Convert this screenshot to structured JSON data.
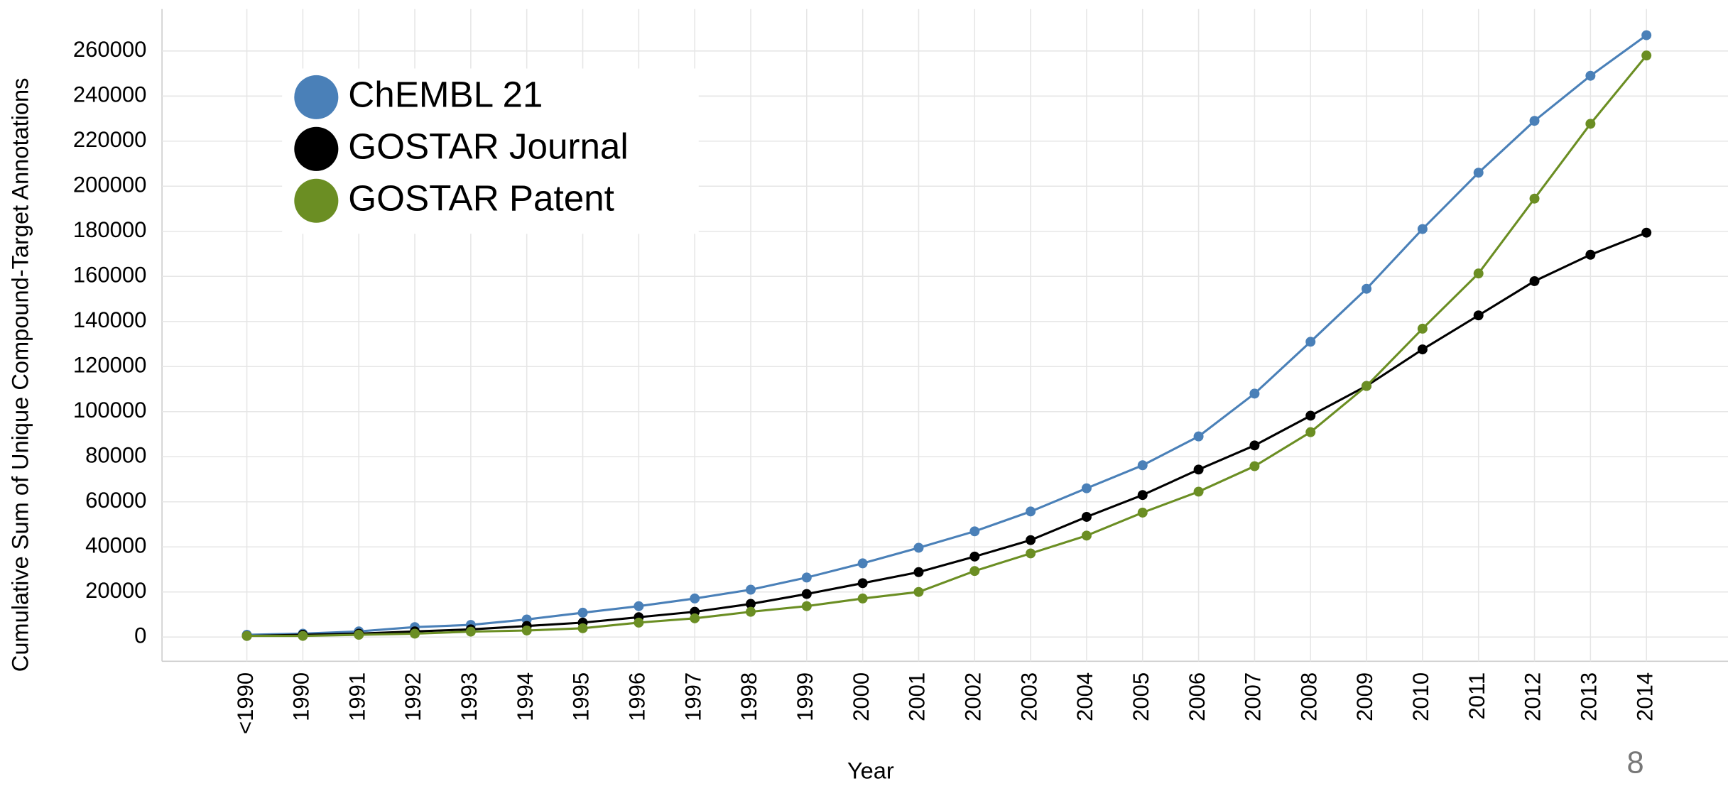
{
  "chart_data": {
    "type": "line",
    "x_label": "Year",
    "y_label": "Cumulative Sum of Unique Compound-Target Annotations",
    "categories": [
      "<1990",
      "1990",
      "1991",
      "1992",
      "1993",
      "1994",
      "1995",
      "1996",
      "1997",
      "1998",
      "1999",
      "2000",
      "2001",
      "2002",
      "2003",
      "2004",
      "2005",
      "2006",
      "2007",
      "2008",
      "2009",
      "2010",
      "2011",
      "2012",
      "2013",
      "2014"
    ],
    "series": [
      {
        "name": "ChEMBL 21",
        "color": "#4a80b8",
        "values": [
          1000,
          1500,
          2500,
          4400,
          5400,
          7800,
          10800,
          13700,
          17100,
          21000,
          26400,
          32700,
          39600,
          46900,
          55700,
          66000,
          76200,
          89000,
          108000,
          131000,
          154500,
          181000,
          206000,
          229000,
          249000,
          267000
        ]
      },
      {
        "name": "GOSTAR Journal",
        "color": "#000000",
        "values": [
          500,
          1000,
          1500,
          2500,
          3400,
          4900,
          6400,
          8800,
          11200,
          14700,
          19100,
          23900,
          28800,
          35700,
          43000,
          53300,
          63000,
          74300,
          85000,
          98200,
          111400,
          127600,
          142700,
          157900,
          169600,
          179400
        ]
      },
      {
        "name": "GOSTAR Patent",
        "color": "#6b8e23",
        "values": [
          500,
          500,
          1000,
          1500,
          2400,
          2900,
          3900,
          6400,
          8300,
          11200,
          13700,
          17100,
          20000,
          29300,
          37100,
          45000,
          55200,
          64500,
          75800,
          90900,
          111400,
          136800,
          161300,
          194500,
          227700,
          258000
        ]
      }
    ],
    "ylim": [
      -10750,
      278600
    ],
    "yticks": [
      0,
      20000,
      40000,
      60000,
      80000,
      100000,
      120000,
      140000,
      160000,
      180000,
      200000,
      220000,
      240000,
      260000
    ],
    "grid": true,
    "legend": "upper left"
  },
  "page_number": "8"
}
